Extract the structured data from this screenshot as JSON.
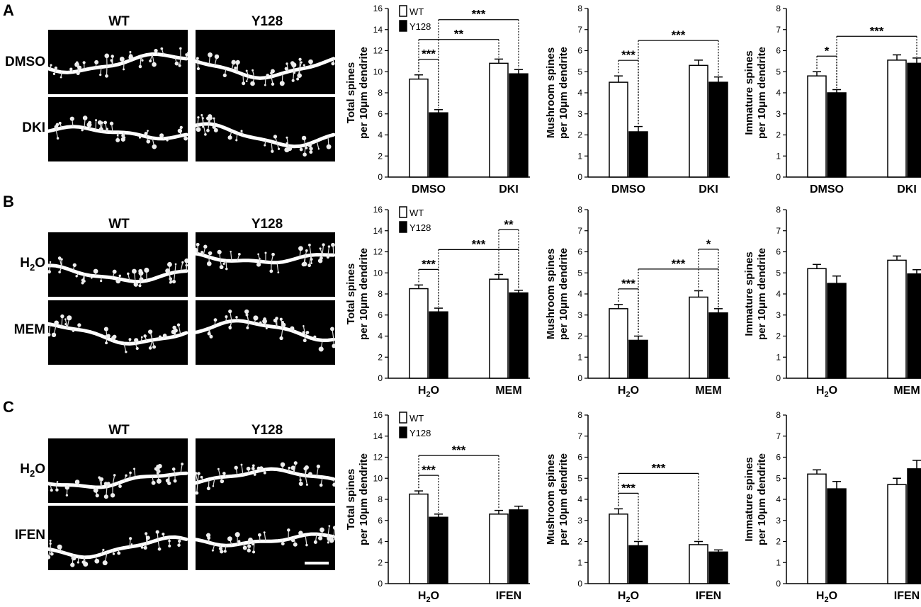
{
  "colors": {
    "wt_fill": "#ffffff",
    "y128_fill": "#000000",
    "axis": "#000000",
    "micrograph_bg": "#000000",
    "dendrite": "#ffffff"
  },
  "panels": [
    {
      "letter": "A",
      "columns": [
        "WT",
        "Y128"
      ],
      "rows": [
        {
          "label": "DMSO"
        },
        {
          "label": "DKI"
        }
      ],
      "charts": [
        {
          "ylabel": [
            "Total spines",
            "per 10μm dendrite"
          ],
          "ymax": 16,
          "step": 2,
          "groups": [
            {
              "label": "DMSO"
            },
            {
              "label": "DKI"
            }
          ],
          "legend": [
            "WT",
            "Y128"
          ]
        },
        {
          "ylabel": [
            "Mushroom spines",
            "per 10μm dendrite"
          ],
          "ymax": 8,
          "step": 1,
          "groups": [
            {
              "label": "DMSO"
            },
            {
              "label": "DKI"
            }
          ]
        },
        {
          "ylabel": [
            "Immature spines",
            "per 10μm dendrite"
          ],
          "ymax": 8,
          "step": 1,
          "groups": [
            {
              "label": "DMSO"
            },
            {
              "label": "DKI"
            }
          ]
        }
      ]
    },
    {
      "letter": "B",
      "columns": [
        "WT",
        "Y128"
      ],
      "rows": [
        {
          "label": "H2O",
          "main": "H",
          "sub": "2",
          "tail": "O"
        },
        {
          "label": "MEM"
        }
      ],
      "charts": [
        {
          "ylabel": [
            "Total spines",
            "per 10μm dendrite"
          ],
          "ymax": 16,
          "step": 2,
          "groups": [
            {
              "label": "H2O",
              "main": "H",
              "sub": "2",
              "tail": "O"
            },
            {
              "label": "MEM"
            }
          ],
          "legend": [
            "WT",
            "Y128"
          ]
        },
        {
          "ylabel": [
            "Mushroom spines",
            "per 10μm dendrite"
          ],
          "ymax": 8,
          "step": 1,
          "groups": [
            {
              "label": "H2O",
              "main": "H",
              "sub": "2",
              "tail": "O"
            },
            {
              "label": "MEM"
            }
          ]
        },
        {
          "ylabel": [
            "Immature spines",
            "per 10μm dendrite"
          ],
          "ymax": 8,
          "step": 1,
          "groups": [
            {
              "label": "H2O",
              "main": "H",
              "sub": "2",
              "tail": "O"
            },
            {
              "label": "MEM"
            }
          ]
        }
      ]
    },
    {
      "letter": "C",
      "columns": [
        "WT",
        "Y128"
      ],
      "rows": [
        {
          "label": "H2O",
          "main": "H",
          "sub": "2",
          "tail": "O"
        },
        {
          "label": "IFEN"
        }
      ],
      "charts": [
        {
          "ylabel": [
            "Total spines",
            "per 10μm dendrite"
          ],
          "ymax": 16,
          "step": 2,
          "groups": [
            {
              "label": "H2O",
              "main": "H",
              "sub": "2",
              "tail": "O"
            },
            {
              "label": "IFEN"
            }
          ],
          "legend": [
            "WT",
            "Y128"
          ]
        },
        {
          "ylabel": [
            "Mushroom spines",
            "per 10μm dendrite"
          ],
          "ymax": 8,
          "step": 1,
          "groups": [
            {
              "label": "H2O",
              "main": "H",
              "sub": "2",
              "tail": "O"
            },
            {
              "label": "IFEN"
            }
          ]
        },
        {
          "ylabel": [
            "Immature spines",
            "per 10μm dendrite"
          ],
          "ymax": 8,
          "step": 1,
          "groups": [
            {
              "label": "H2O",
              "main": "H",
              "sub": "2",
              "tail": "O"
            },
            {
              "label": "IFEN"
            }
          ]
        }
      ]
    }
  ],
  "chart_data": [
    {
      "panel": "A",
      "type": "bar",
      "series_names": [
        "WT",
        "Y128"
      ],
      "categories": [
        "DMSO",
        "DKI"
      ],
      "ylim": [
        0,
        16
      ],
      "ylabel": "Total spines per 10μm dendrite",
      "series": [
        {
          "name": "WT",
          "values": [
            9.3,
            10.8
          ],
          "errors": [
            0.4,
            0.4
          ]
        },
        {
          "name": "Y128",
          "values": [
            6.1,
            9.8
          ],
          "errors": [
            0.3,
            0.4
          ]
        }
      ],
      "significance": [
        {
          "from": [
            0,
            0
          ],
          "to": [
            0,
            1
          ],
          "label": "***"
        },
        {
          "from": [
            0,
            0
          ],
          "to": [
            1,
            0
          ],
          "label": "**"
        },
        {
          "from": [
            0,
            1
          ],
          "to": [
            1,
            1
          ],
          "label": "***"
        }
      ]
    },
    {
      "panel": "A",
      "type": "bar",
      "categories": [
        "DMSO",
        "DKI"
      ],
      "ylim": [
        0,
        8
      ],
      "ylabel": "Mushroom spines per 10μm dendrite",
      "series": [
        {
          "values": [
            4.5,
            5.3
          ],
          "errors": [
            0.3,
            0.25
          ]
        },
        {
          "values": [
            2.15,
            4.5
          ],
          "errors": [
            0.25,
            0.25
          ]
        }
      ],
      "significance": [
        {
          "from": [
            0,
            0
          ],
          "to": [
            0,
            1
          ],
          "label": "***"
        },
        {
          "from": [
            0,
            1
          ],
          "to": [
            1,
            1
          ],
          "label": "***"
        }
      ]
    },
    {
      "panel": "A",
      "type": "bar",
      "categories": [
        "DMSO",
        "DKI"
      ],
      "ylim": [
        0,
        8
      ],
      "ylabel": "Immature spines per 10μm dendrite",
      "series": [
        {
          "values": [
            4.8,
            5.55
          ],
          "errors": [
            0.2,
            0.25
          ]
        },
        {
          "values": [
            4.0,
            5.4
          ],
          "errors": [
            0.15,
            0.25
          ]
        }
      ],
      "significance": [
        {
          "from": [
            0,
            0
          ],
          "to": [
            0,
            1
          ],
          "label": "*"
        },
        {
          "from": [
            0,
            1
          ],
          "to": [
            1,
            1
          ],
          "label": "***"
        }
      ]
    },
    {
      "panel": "B",
      "type": "bar",
      "series_names": [
        "WT",
        "Y128"
      ],
      "categories": [
        "H2O",
        "MEM"
      ],
      "ylim": [
        0,
        16
      ],
      "ylabel": "Total spines per 10μm dendrite",
      "series": [
        {
          "name": "WT",
          "values": [
            8.5,
            9.4
          ],
          "errors": [
            0.35,
            0.45
          ]
        },
        {
          "name": "Y128",
          "values": [
            6.3,
            8.1
          ],
          "errors": [
            0.35,
            0.25
          ]
        }
      ],
      "significance": [
        {
          "from": [
            0,
            0
          ],
          "to": [
            0,
            1
          ],
          "label": "***"
        },
        {
          "from": [
            0,
            1
          ],
          "to": [
            1,
            1
          ],
          "label": "***"
        },
        {
          "from": [
            1,
            0
          ],
          "to": [
            1,
            1
          ],
          "label": "**"
        }
      ]
    },
    {
      "panel": "B",
      "type": "bar",
      "categories": [
        "H2O",
        "MEM"
      ],
      "ylim": [
        0,
        8
      ],
      "ylabel": "Mushroom spines per 10μm dendrite",
      "series": [
        {
          "values": [
            3.3,
            3.85
          ],
          "errors": [
            0.2,
            0.3
          ]
        },
        {
          "values": [
            1.8,
            3.1
          ],
          "errors": [
            0.2,
            0.2
          ]
        }
      ],
      "significance": [
        {
          "from": [
            0,
            0
          ],
          "to": [
            0,
            1
          ],
          "label": "***"
        },
        {
          "from": [
            0,
            1
          ],
          "to": [
            1,
            1
          ],
          "label": "***"
        },
        {
          "from": [
            1,
            0
          ],
          "to": [
            1,
            1
          ],
          "label": "*"
        }
      ]
    },
    {
      "panel": "B",
      "type": "bar",
      "categories": [
        "H2O",
        "MEM"
      ],
      "ylim": [
        0,
        8
      ],
      "ylabel": "Immature spines per 10μm dendrite",
      "series": [
        {
          "values": [
            5.2,
            5.6
          ],
          "errors": [
            0.2,
            0.2
          ]
        },
        {
          "values": [
            4.5,
            4.95
          ],
          "errors": [
            0.35,
            0.2
          ]
        }
      ],
      "significance": []
    },
    {
      "panel": "C",
      "type": "bar",
      "series_names": [
        "WT",
        "Y128"
      ],
      "categories": [
        "H2O",
        "IFEN"
      ],
      "ylim": [
        0,
        16
      ],
      "ylabel": "Total spines per 10μm dendrite",
      "series": [
        {
          "name": "WT",
          "values": [
            8.5,
            6.6
          ],
          "errors": [
            0.3,
            0.35
          ]
        },
        {
          "name": "Y128",
          "values": [
            6.3,
            7.0
          ],
          "errors": [
            0.3,
            0.35
          ]
        }
      ],
      "significance": [
        {
          "from": [
            0,
            0
          ],
          "to": [
            0,
            1
          ],
          "label": "***"
        },
        {
          "from": [
            0,
            0
          ],
          "to": [
            1,
            0
          ],
          "label": "***"
        }
      ]
    },
    {
      "panel": "C",
      "type": "bar",
      "categories": [
        "H2O",
        "IFEN"
      ],
      "ylim": [
        0,
        8
      ],
      "ylabel": "Mushroom spines per 10μm dendrite",
      "series": [
        {
          "values": [
            3.3,
            1.85
          ],
          "errors": [
            0.25,
            0.15
          ]
        },
        {
          "values": [
            1.8,
            1.5
          ],
          "errors": [
            0.2,
            0.1
          ]
        }
      ],
      "significance": [
        {
          "from": [
            0,
            0
          ],
          "to": [
            0,
            1
          ],
          "label": "***"
        },
        {
          "from": [
            0,
            0
          ],
          "to": [
            1,
            0
          ],
          "label": "***"
        }
      ]
    },
    {
      "panel": "C",
      "type": "bar",
      "categories": [
        "H2O",
        "IFEN"
      ],
      "ylim": [
        0,
        8
      ],
      "ylabel": "Immature spines per 10μm dendrite",
      "series": [
        {
          "values": [
            5.2,
            4.7
          ],
          "errors": [
            0.2,
            0.3
          ]
        },
        {
          "values": [
            4.5,
            5.45
          ],
          "errors": [
            0.35,
            0.4
          ]
        }
      ],
      "significance": []
    }
  ]
}
